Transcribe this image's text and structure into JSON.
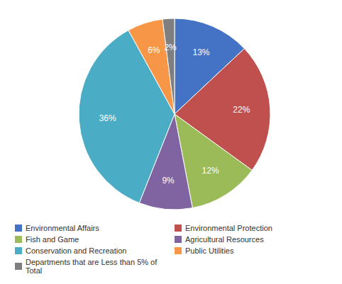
{
  "chart_data": {
    "type": "pie",
    "categories": [
      "Environmental Affairs",
      "Environmental Protection",
      "Fish and Game",
      "Agricultural Resources",
      "Conservation and Recreation",
      "Public Utilities",
      "Departments that are Less than 5% of Total"
    ],
    "values": [
      13,
      22,
      12,
      9,
      36,
      6,
      2
    ],
    "value_labels": [
      "13%",
      "22%",
      "12%",
      "9%",
      "36%",
      "6%",
      "2%"
    ],
    "colors": [
      "#4472c4",
      "#c0504d",
      "#9bbb59",
      "#8064a2",
      "#4bacc6",
      "#f79646",
      "#7f7f7f"
    ],
    "data_labels": true,
    "legend": "bottom"
  }
}
